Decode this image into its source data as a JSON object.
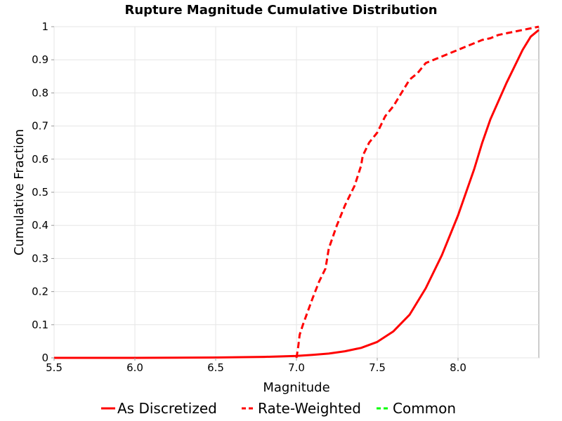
{
  "chart_data": {
    "type": "line",
    "title": "Rupture Magnitude Cumulative Distribution",
    "xlabel": "Magnitude",
    "ylabel": "Cumulative Fraction",
    "xlim": [
      5.5,
      8.5
    ],
    "ylim": [
      0,
      1
    ],
    "x_ticks": [
      "5.5",
      "6.0",
      "6.5",
      "7.0",
      "7.5",
      "8.0"
    ],
    "x_tick_values": [
      5.5,
      6.0,
      6.5,
      7.0,
      7.5,
      8.0
    ],
    "y_ticks": [
      "0",
      "0.1",
      "0.2",
      "0.3",
      "0.4",
      "0.5",
      "0.6",
      "0.7",
      "0.8",
      "0.9",
      "1"
    ],
    "y_tick_values": [
      0,
      0.1,
      0.2,
      0.3,
      0.4,
      0.5,
      0.6,
      0.7,
      0.8,
      0.9,
      1.0
    ],
    "grid": true,
    "legend_position": "bottom",
    "series": [
      {
        "name": "As Discretized",
        "color": "#ff0000",
        "dash": "solid",
        "x": [
          5.5,
          6.0,
          6.5,
          6.8,
          7.0,
          7.1,
          7.2,
          7.3,
          7.4,
          7.5,
          7.6,
          7.7,
          7.8,
          7.9,
          8.0,
          8.1,
          8.15,
          8.2,
          8.3,
          8.4,
          8.45,
          8.5
        ],
        "y": [
          0.0,
          0.0,
          0.001,
          0.003,
          0.006,
          0.009,
          0.013,
          0.02,
          0.03,
          0.048,
          0.08,
          0.13,
          0.21,
          0.31,
          0.43,
          0.57,
          0.65,
          0.72,
          0.83,
          0.93,
          0.97,
          0.99
        ]
      },
      {
        "name": "Rate-Weighted",
        "color": "#ff0000",
        "dash": "dashed",
        "x": [
          7.0,
          7.01,
          7.02,
          7.04,
          7.07,
          7.1,
          7.14,
          7.18,
          7.2,
          7.25,
          7.3,
          7.33,
          7.36,
          7.38,
          7.4,
          7.41,
          7.45,
          7.5,
          7.52,
          7.55,
          7.6,
          7.65,
          7.7,
          7.75,
          7.8,
          7.85,
          7.9,
          7.95,
          8.0,
          8.05,
          8.1,
          8.15,
          8.2,
          8.25,
          8.3,
          8.35,
          8.4,
          8.45,
          8.5
        ],
        "y": [
          0.0,
          0.03,
          0.07,
          0.1,
          0.14,
          0.18,
          0.23,
          0.27,
          0.33,
          0.4,
          0.46,
          0.49,
          0.52,
          0.55,
          0.58,
          0.61,
          0.65,
          0.68,
          0.7,
          0.73,
          0.76,
          0.8,
          0.84,
          0.86,
          0.89,
          0.9,
          0.91,
          0.92,
          0.93,
          0.94,
          0.95,
          0.96,
          0.965,
          0.975,
          0.98,
          0.985,
          0.99,
          0.995,
          1.0
        ]
      },
      {
        "name": "Common",
        "color": "#00ff00",
        "dash": "dashed",
        "x": [],
        "y": []
      }
    ]
  }
}
